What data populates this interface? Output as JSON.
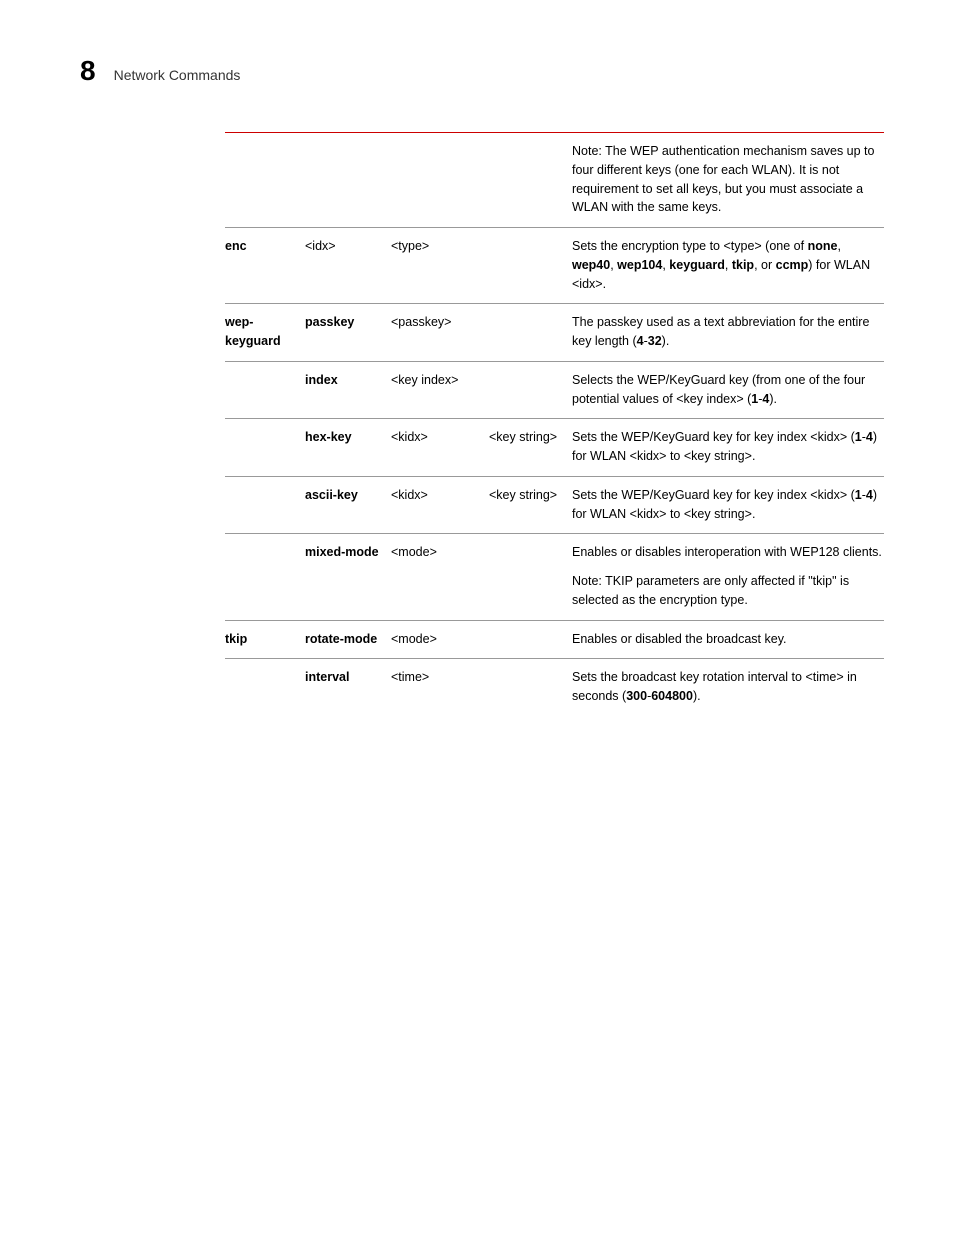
{
  "page": {
    "number": "8",
    "title": "Network Commands"
  },
  "colors": {
    "rule_top": "#cc0000",
    "rule": "#999999",
    "text": "#000000",
    "bg": "#ffffff"
  },
  "rows": [
    {
      "c1": "",
      "c2": "",
      "c3": "",
      "c4": "",
      "desc_html": "Note: The WEP authentication mechanism saves up to four different keys (one for each WLAN). It is not requirement to set all keys, but you must associate a WLAN with the same keys."
    },
    {
      "c1": "enc",
      "c1b": true,
      "c2": "<idx>",
      "c3": "<type>",
      "c4": "",
      "desc_html": "Sets the encryption type to <type> (one of <b>none</b>, <b>wep40</b>, <b>wep104</b>, <b>keyguard</b>, <b>tkip</b>, or <b>ccmp</b>) for WLAN <idx>."
    },
    {
      "c1": "wep-keyguard",
      "c1b": true,
      "c2": "passkey",
      "c2b": true,
      "c3": "<passkey>",
      "c4": "",
      "desc_html": "The passkey used as a text abbreviation for the entire key length (<b>4</b>-<b>32</b>)."
    },
    {
      "c1": "",
      "c2": "index",
      "c2b": true,
      "c3": "<key index>",
      "c4": "",
      "desc_html": "Selects the WEP/KeyGuard key (from one of the four potential values of <key index> (<b>1</b>-<b>4</b>)."
    },
    {
      "c1": "",
      "c2": "hex-key",
      "c2b": true,
      "c3": "<kidx>",
      "c4": "<key string>",
      "desc_html": "Sets the WEP/KeyGuard key for key index <kidx> (<b>1</b>-<b>4</b>) for WLAN <kidx> to <key string>."
    },
    {
      "c1": "",
      "c2": "ascii-key",
      "c2b": true,
      "c3": "<kidx>",
      "c4": "<key string>",
      "desc_html": "Sets the WEP/KeyGuard key for key index <kidx> (<b>1</b>-<b>4</b>) for WLAN <kidx> to <key string>."
    },
    {
      "c1": "",
      "c2": "mixed-mode",
      "c2b": true,
      "c3": "<mode>",
      "c4": "",
      "desc_html": "Enables or disables interoperation with WEP128 clients.",
      "desc2_html": "Note: TKIP parameters are only affected if \"tkip\" is selected as the encryption type."
    },
    {
      "c1": "tkip",
      "c1b": true,
      "c2": "rotate-mode",
      "c2b": true,
      "c3": "<mode>",
      "c4": "",
      "desc_html": "Enables or disabled the broadcast key."
    },
    {
      "c1": "",
      "c2": "interval",
      "c2b": true,
      "c3": "<time>",
      "c4": "",
      "desc_html": "Sets the broadcast key rotation interval to <time> in seconds (<b>300</b>-<b>604800</b>)."
    }
  ]
}
